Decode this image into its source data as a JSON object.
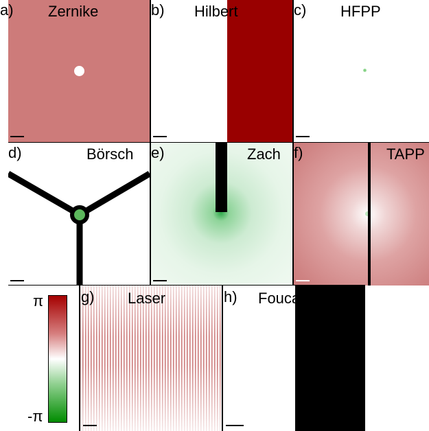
{
  "panels": {
    "a": {
      "letter": "a)",
      "title": "Zernike",
      "background": "#cd7b7a",
      "dot_color": "#ffffff"
    },
    "b": {
      "letter": "b)",
      "title": "Hilbert",
      "band_color": "#990000"
    },
    "c": {
      "letter": "c)",
      "title": "HFPP",
      "dot_color": "#7fd07f"
    },
    "d": {
      "letter": "d)",
      "title": "Börsch",
      "ring_color": "#5cb85c"
    },
    "e": {
      "letter": "e)",
      "title": "Zach",
      "glow_color": "#2ea84a"
    },
    "f": {
      "letter": "f)",
      "title": "TAPP"
    },
    "g": {
      "letter": "g)",
      "title": "Laser",
      "stripe_color": "#c56b6b"
    },
    "h": {
      "letter": "h)",
      "title": "Foucault",
      "band_color": "#000000"
    }
  },
  "colorbar": {
    "max_label": "π",
    "min_label": "-π",
    "top_color": "#a50000",
    "middle_color": "#ffffff",
    "bottom_color": "#008c00"
  }
}
